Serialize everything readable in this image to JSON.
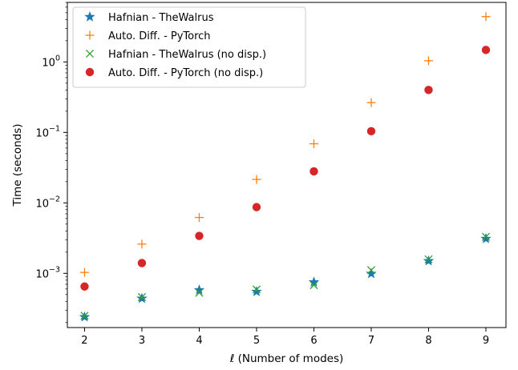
{
  "chart_data": {
    "type": "scatter",
    "title": "",
    "xlabel": "ℓ (Number of modes)",
    "ylabel": "Time (seconds)",
    "xscale": "linear",
    "yscale": "log",
    "xlim": [
      1.7,
      9.35
    ],
    "ylim": [
      0.00017,
      7.0
    ],
    "x_ticks": [
      2,
      3,
      4,
      5,
      6,
      7,
      8,
      9
    ],
    "y_ticks": [
      {
        "value": 0.001,
        "base": "10",
        "exp": "−3"
      },
      {
        "value": 0.01,
        "base": "10",
        "exp": "−2"
      },
      {
        "value": 0.1,
        "base": "10",
        "exp": "−1"
      },
      {
        "value": 1,
        "base": "10",
        "exp": "0"
      }
    ],
    "grid": false,
    "legend_position": "top-left",
    "x": [
      2,
      3,
      4,
      5,
      6,
      7,
      8,
      9
    ],
    "series": [
      {
        "name": "Hafnian - TheWalrus",
        "marker": "star",
        "color": "#1f77b4",
        "values": [
          0.00024,
          0.00044,
          0.00058,
          0.00055,
          0.00075,
          0.00099,
          0.0015,
          0.0031
        ]
      },
      {
        "name": "Auto. Diff. - PyTorch",
        "marker": "plus",
        "color": "#ff7f0e",
        "values": [
          0.00103,
          0.0026,
          0.0062,
          0.0215,
          0.069,
          0.265,
          1.04,
          4.4
        ]
      },
      {
        "name": "Hafnian - TheWalrus (no disp.)",
        "marker": "x",
        "color": "#2ca02c",
        "values": [
          0.00025,
          0.00046,
          0.00053,
          0.00059,
          0.00068,
          0.00111,
          0.00158,
          0.0033
        ]
      },
      {
        "name": "Auto. Diff. - PyTorch (no disp.)",
        "marker": "circle",
        "color": "#d62728",
        "values": [
          0.00065,
          0.0014,
          0.0034,
          0.0087,
          0.028,
          0.104,
          0.4,
          1.48
        ]
      }
    ]
  }
}
